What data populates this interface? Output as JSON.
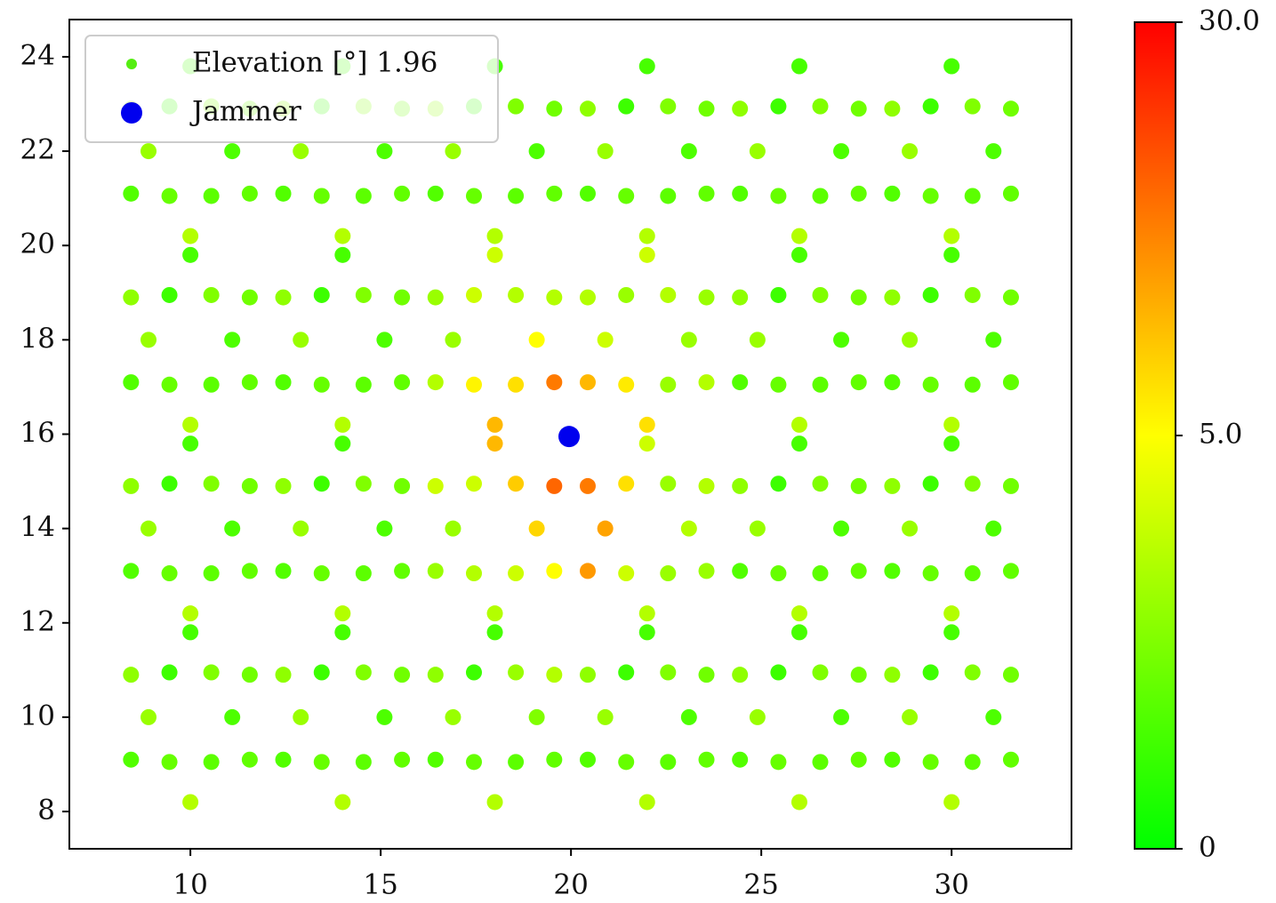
{
  "chart_data": {
    "type": "scatter",
    "xlim": [
      6.82,
      33.15
    ],
    "ylim": [
      7.21,
      24.79
    ],
    "xticks": [
      10,
      15,
      20,
      25,
      30
    ],
    "yticks": [
      8,
      10,
      12,
      14,
      16,
      18,
      20,
      22,
      24
    ],
    "legend": "upper left",
    "colorbar": {
      "clim": [
        0,
        30
      ],
      "vcenter": 5,
      "cmap": [
        "#00ff00",
        "#ffff00",
        "#ff0000"
      ],
      "ticks": [
        0,
        {
          "value": 5,
          "label": "5.0"
        },
        {
          "value": 30,
          "label": "30.0"
        }
      ]
    },
    "series": [
      {
        "name": "Elevation [°] 1.96",
        "color": "#55ee11",
        "x": [
          11.1,
          10.55,
          9.45,
          8.9,
          9.45,
          10.55,
          11.56,
          10,
          8.44,
          8.44,
          10,
          11.56,
          15.1,
          14.55,
          13.45,
          12.9,
          13.45,
          14.55,
          15.56,
          14,
          12.44,
          12.44,
          14,
          15.56,
          19.1,
          18.55,
          17.45,
          16.9,
          17.45,
          18.55,
          19.56,
          18,
          16.44,
          16.44,
          18,
          19.56,
          23.1,
          22.55,
          21.45,
          20.9,
          21.45,
          22.55,
          23.56,
          22,
          20.44,
          20.44,
          22,
          23.56,
          27.1,
          26.55,
          25.45,
          24.9,
          25.45,
          26.55,
          27.56,
          26,
          24.44,
          24.44,
          26,
          27.56,
          31.1,
          30.55,
          29.45,
          28.9,
          29.45,
          30.55,
          31.56,
          30,
          28.44,
          28.44,
          30,
          31.56,
          11.1,
          10.55,
          9.45,
          8.9,
          9.45,
          10.55,
          11.56,
          10,
          8.44,
          8.44,
          10,
          11.56,
          15.1,
          14.55,
          13.45,
          12.9,
          13.45,
          14.55,
          15.56,
          14,
          12.44,
          12.44,
          14,
          15.56,
          19.1,
          18.55,
          17.45,
          16.9,
          17.45,
          18.55,
          19.56,
          18,
          16.44,
          16.44,
          18,
          19.56,
          23.1,
          22.55,
          21.45,
          20.9,
          21.45,
          22.55,
          23.56,
          22,
          20.44,
          20.44,
          22,
          23.56,
          27.1,
          26.55,
          25.45,
          24.9,
          25.45,
          26.55,
          27.56,
          26,
          24.44,
          24.44,
          26,
          27.56,
          31.1,
          30.55,
          29.45,
          28.9,
          29.45,
          30.55,
          31.56,
          30,
          28.44,
          28.44,
          30,
          31.56,
          11.1,
          10.55,
          9.45,
          8.9,
          9.45,
          10.55,
          11.56,
          10,
          8.44,
          8.44,
          10,
          11.56,
          15.1,
          14.55,
          13.45,
          12.9,
          13.45,
          14.55,
          15.56,
          14,
          12.44,
          12.44,
          14,
          15.56,
          19.1,
          18.55,
          17.45,
          16.9,
          17.45,
          18.55,
          19.56,
          18,
          16.44,
          16.44,
          18,
          19.56,
          23.1,
          22.55,
          21.45,
          20.9,
          21.45,
          22.55,
          23.56,
          22,
          20.44,
          20.44,
          22,
          23.56,
          27.1,
          26.55,
          25.45,
          24.9,
          25.45,
          26.55,
          27.56,
          26,
          24.44,
          24.44,
          26,
          27.56,
          31.1,
          30.55,
          29.45,
          28.9,
          29.45,
          30.55,
          31.56,
          30,
          28.44,
          28.44,
          30,
          31.56,
          11.1,
          10.55,
          9.45,
          8.9,
          9.45,
          10.55,
          11.56,
          10,
          8.44,
          8.44,
          10,
          11.56,
          15.1,
          14.55,
          13.45,
          12.9,
          13.45,
          14.55,
          15.56,
          14,
          12.44,
          12.44,
          14,
          15.56,
          19.1,
          18.55,
          17.45,
          16.9,
          17.45,
          18.55,
          19.56,
          18,
          16.44,
          16.44,
          18,
          19.56,
          23.1,
          22.55,
          21.45,
          20.9,
          21.45,
          22.55,
          23.56,
          22,
          20.44,
          20.44,
          22,
          23.56,
          27.1,
          26.55,
          25.45,
          24.9,
          25.45,
          26.55,
          27.56,
          26,
          24.44,
          24.44,
          26,
          27.56,
          31.1,
          30.55,
          29.45,
          28.9,
          29.45,
          30.55,
          31.56,
          30,
          28.44,
          28.44,
          30,
          31.56
        ],
        "y": [
          22,
          22.95,
          22.95,
          22,
          21.05,
          21.05,
          22.9,
          23.8,
          22.9,
          21.1,
          20.2,
          21.1,
          22,
          22.95,
          22.95,
          22,
          21.05,
          21.05,
          22.9,
          23.8,
          22.9,
          21.1,
          20.2,
          21.1,
          22,
          22.95,
          22.95,
          22,
          21.05,
          21.05,
          22.9,
          23.8,
          22.9,
          21.1,
          20.2,
          21.1,
          22,
          22.95,
          22.95,
          22,
          21.05,
          21.05,
          22.9,
          23.8,
          22.9,
          21.1,
          20.2,
          21.1,
          22,
          22.95,
          22.95,
          22,
          21.05,
          21.05,
          22.9,
          23.8,
          22.9,
          21.1,
          20.2,
          21.1,
          22,
          22.95,
          22.95,
          22,
          21.05,
          21.05,
          22.9,
          23.8,
          22.9,
          21.1,
          20.2,
          21.1,
          18,
          18.95,
          18.95,
          18,
          17.05,
          17.05,
          18.9,
          19.8,
          18.9,
          17.1,
          16.2,
          17.1,
          18,
          18.95,
          18.95,
          18,
          17.05,
          17.05,
          18.9,
          19.8,
          18.9,
          17.1,
          16.2,
          17.1,
          18,
          18.95,
          18.95,
          18,
          17.05,
          17.05,
          18.9,
          19.8,
          18.9,
          17.1,
          16.2,
          17.1,
          18,
          18.95,
          18.95,
          18,
          17.05,
          17.05,
          18.9,
          19.8,
          18.9,
          17.1,
          16.2,
          17.1,
          18,
          18.95,
          18.95,
          18,
          17.05,
          17.05,
          18.9,
          19.8,
          18.9,
          17.1,
          16.2,
          17.1,
          18,
          18.95,
          18.95,
          18,
          17.05,
          17.05,
          18.9,
          19.8,
          18.9,
          17.1,
          16.2,
          17.1,
          14,
          14.95,
          14.95,
          14,
          13.05,
          13.05,
          14.9,
          15.8,
          14.9,
          13.1,
          12.2,
          13.1,
          14,
          14.95,
          14.95,
          14,
          13.05,
          13.05,
          14.9,
          15.8,
          14.9,
          13.1,
          12.2,
          13.1,
          14,
          14.95,
          14.95,
          14,
          13.05,
          13.05,
          14.9,
          15.8,
          14.9,
          13.1,
          12.2,
          13.1,
          14,
          14.95,
          14.95,
          14,
          13.05,
          13.05,
          14.9,
          15.8,
          14.9,
          13.1,
          12.2,
          13.1,
          14,
          14.95,
          14.95,
          14,
          13.05,
          13.05,
          14.9,
          15.8,
          14.9,
          13.1,
          12.2,
          13.1,
          14,
          14.95,
          14.95,
          14,
          13.05,
          13.05,
          14.9,
          15.8,
          14.9,
          13.1,
          12.2,
          13.1,
          10,
          10.95,
          10.95,
          10,
          9.05,
          9.05,
          10.9,
          11.8,
          10.9,
          9.1,
          8.2,
          9.1,
          10,
          10.95,
          10.95,
          10,
          9.05,
          9.05,
          10.9,
          11.8,
          10.9,
          9.1,
          8.2,
          9.1,
          10,
          10.95,
          10.95,
          10,
          9.05,
          9.05,
          10.9,
          11.8,
          10.9,
          9.1,
          8.2,
          9.1,
          10,
          10.95,
          10.95,
          10,
          9.05,
          9.05,
          10.9,
          11.8,
          10.9,
          9.1,
          8.2,
          9.1,
          10,
          10.95,
          10.95,
          10,
          9.05,
          9.05,
          10.9,
          11.8,
          10.9,
          9.1,
          8.2,
          9.1,
          10,
          10.95,
          10.95,
          10,
          9.05,
          9.05,
          10.9,
          11.8,
          10.9,
          9.1,
          8.2,
          9.1
        ],
        "c": [
          1.5,
          2.5,
          1.2,
          3,
          2,
          1.8,
          2.2,
          1.4,
          2.8,
          1.6,
          3.5,
          1.9,
          1.5,
          2.5,
          1.2,
          3,
          2,
          1.8,
          2.2,
          1.4,
          2.8,
          1.6,
          3.5,
          1.9,
          1.5,
          2.5,
          1.2,
          3,
          2,
          1.8,
          2.2,
          1.4,
          2.8,
          1.6,
          3.5,
          1.9,
          1.5,
          2.5,
          1.2,
          3,
          2,
          1.8,
          2.2,
          1.4,
          2.8,
          1.6,
          3.5,
          1.9,
          1.5,
          2.5,
          1.2,
          3,
          2,
          1.8,
          2.2,
          1.4,
          2.8,
          1.6,
          3.5,
          1.9,
          1.5,
          2.5,
          1.2,
          3,
          2,
          1.8,
          2.2,
          1.4,
          2.8,
          1.6,
          3.5,
          1.9,
          1.5,
          2.5,
          1.2,
          3,
          2,
          1.8,
          2.2,
          1.4,
          2.8,
          1.6,
          3.5,
          1.9,
          1.5,
          2.5,
          1.2,
          3,
          2,
          1.8,
          2.2,
          1.4,
          2.8,
          1.6,
          3.5,
          1.9,
          5,
          3.5,
          4,
          3,
          6,
          8,
          3.5,
          4,
          3,
          3.5,
          12,
          18,
          3,
          3.5,
          3,
          4,
          7,
          3,
          3,
          4,
          3.5,
          12,
          8,
          3.5,
          1.5,
          2.5,
          1.2,
          3,
          2,
          1.8,
          2.2,
          1.4,
          2.8,
          1.6,
          3.5,
          1.9,
          1.5,
          2.5,
          1.2,
          3,
          2,
          1.8,
          2.2,
          1.4,
          2.8,
          1.6,
          3.5,
          1.9,
          1.5,
          2.5,
          1.2,
          3,
          2,
          1.8,
          2.2,
          1.4,
          2.8,
          1.6,
          3.5,
          1.9,
          1.5,
          2.5,
          1.2,
          3,
          2,
          1.8,
          2.2,
          1.4,
          2.8,
          1.6,
          3.5,
          1.9,
          9,
          10,
          4,
          3,
          3.5,
          4,
          20,
          12,
          4,
          3,
          3.5,
          5,
          3.5,
          3,
          8,
          14,
          4,
          3,
          3.5,
          4,
          18,
          15,
          3.5,
          3,
          1.5,
          2.5,
          1.2,
          3,
          2,
          1.8,
          2.2,
          1.4,
          2.8,
          1.6,
          3.5,
          1.9,
          1.5,
          2.5,
          1.2,
          3,
          2,
          1.8,
          2.2,
          1.4,
          2.8,
          1.6,
          3.5,
          1.9,
          1.5,
          2.5,
          1.2,
          3,
          2,
          1.8,
          2.2,
          1.4,
          2.8,
          1.6,
          3.5,
          1.9,
          1.5,
          2.5,
          1.2,
          3,
          2,
          1.8,
          2.2,
          1.4,
          2.8,
          1.6,
          3.5,
          1.9,
          2.5,
          3,
          1.2,
          3,
          2,
          1.8,
          3.5,
          1.4,
          2.8,
          1.6,
          3.5,
          1.9,
          1.5,
          2.5,
          1.2,
          3,
          2,
          1.8,
          2.2,
          1.4,
          2.8,
          1.6,
          3.5,
          1.9,
          1.5,
          2.5,
          1.2,
          3,
          2,
          1.8,
          2.2,
          1.4,
          2.8,
          1.6,
          3.5,
          1.9,
          1.5,
          2.5,
          1.2,
          3,
          2,
          1.8,
          2.2,
          1.4,
          2.8,
          1.6,
          3.5,
          1.9
        ]
      },
      {
        "name": "Jammer",
        "color": "#0000ee",
        "x": [
          19.95
        ],
        "y": [
          15.95
        ]
      }
    ]
  }
}
